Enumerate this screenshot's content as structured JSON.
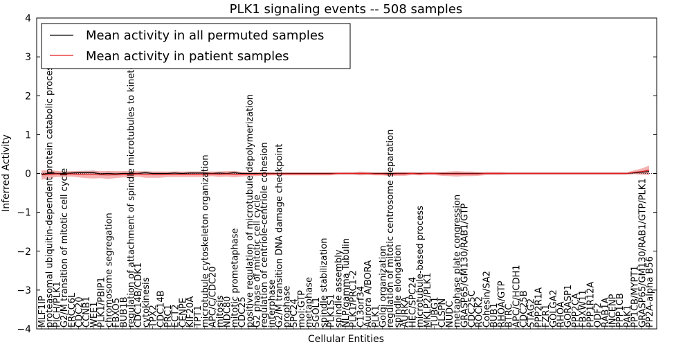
{
  "chart_data": {
    "type": "line",
    "title": "PLK1 signaling events -- 508 samples",
    "xlabel": "Cellular Entities",
    "ylabel": "Inferred Activity",
    "ylim": [
      -4,
      4
    ],
    "yticks": [
      "4",
      "3",
      "2",
      "1",
      "0",
      "−1",
      "−2",
      "−3",
      "−4"
    ],
    "legend": {
      "location": "top-left",
      "entries": [
        {
          "label": "Mean activity in all permuted samples",
          "color": "#000000"
        },
        {
          "label": "Mean activity in patient samples",
          "color": "#e41a1c"
        }
      ]
    },
    "colors": {
      "permuted": "#000000",
      "patient": "#e41a1c",
      "band": "#f08080",
      "band_gray": "#b8b8b8"
    },
    "categories": [
      "MLF1IP",
      "proteasomal ubiquitin-dependent protein catabolic process",
      "PICH/PLK1",
      "G2/M transition of mitotic cell cycle",
      "ERCC6L",
      "CDC20",
      "CCNB1",
      "WEE1",
      "PLK1/PBIP1",
      "chromosome segregation",
      "FBXO5",
      "BUB1B",
      "regulation of attachment of spindle microtubules to kinetochore",
      "CDC14B/CDK1",
      "cytokinesis",
      "TPX2",
      "CDC14B",
      "PRC1",
      "ECT2",
      "CENPE",
      "KIF20A",
      "TPT1",
      "microtubule cytoskeleton organization",
      "APC/C/CDC20",
      "mitosis",
      "NDC80",
      "mitotic prometaphase",
      "CDC25",
      "positive regulation of microtubule depolymerization",
      "G2 phase of mitotic cell cycle",
      "regulation of centriole-centriole cohesion",
      "interphase",
      "G2/M transition DNA damage checkpoint",
      "prophase",
      "SPC24",
      "mol:GTP",
      "metaphase",
      "SGOL1",
      "spindle stabilization",
      "PLK1S1",
      "spindle assembly",
      "NLP/gamma Tubulin",
      "PLK1/PRC1-2",
      "C13orf34",
      "Aurora A/BORA",
      "PLK1",
      "Golgi organization",
      "regulation of mitotic centrosome separation",
      "spindle elongation",
      "AURKA",
      "HEC/SPC24",
      "microtubule-based process",
      "MKLP2/PLK1",
      "TUBG1",
      "CLSPN",
      "NUDC",
      "metaphase plate congression",
      "GRASP65/GM130/RAB1/GTP",
      "CDC25C",
      "ROCK2",
      "Cohesin/SA2",
      "BUB1",
      "RHOA/GTP",
      "BTRC",
      "APC/C/HCDH1",
      "CDC25B",
      "STAG2",
      "PPP2R1A",
      "FZR1",
      "GOLGA2",
      "RHOA",
      "GORASP1",
      "PPP2CA",
      "FBXW11",
      "PPP1R12A",
      "ODF2",
      "RAB1A",
      "INCENP",
      "PPP1CB",
      "PAK1",
      "PP1CB/MYPT1",
      "GRASP65/GM130/RAB1/GTP/PLK1",
      "PP2A-alpha B56"
    ],
    "series": [
      {
        "name": "Mean activity in all permuted samples",
        "values": [
          -0.02,
          0.0,
          0.0,
          0.0,
          0.01,
          0.02,
          0.02,
          0.02,
          -0.01,
          0.0,
          -0.01,
          0.0,
          0.0,
          0.0,
          0.02,
          0.0,
          0.0,
          0.0,
          0.01,
          0.0,
          0.01,
          0.01,
          0.01,
          0.0,
          0.01,
          0.0,
          0.02,
          0.0,
          0.0,
          0.0,
          0.0,
          0.0,
          0.0,
          0.0,
          0.0,
          0.0,
          0.0,
          0.0,
          0.0,
          0.0,
          0.0,
          0.0,
          0.0,
          0.0,
          0.0,
          0.0,
          0.0,
          0.0,
          0.0,
          0.0,
          0.0,
          0.0,
          0.0,
          0.0,
          0.0,
          0.0,
          0.0,
          0.0,
          0.0,
          0.0,
          0.0,
          0.0,
          0.0,
          0.0,
          0.0,
          0.0,
          0.0,
          0.0,
          0.0,
          0.0,
          0.0,
          0.0,
          0.0,
          0.0,
          0.0,
          0.0,
          0.0,
          0.0,
          0.0,
          0.0,
          0.02,
          0.03,
          0.05
        ]
      },
      {
        "name": "Mean activity in patient samples",
        "values": [
          -0.04,
          -0.02,
          -0.01,
          -0.02,
          -0.01,
          -0.02,
          -0.03,
          -0.03,
          -0.03,
          -0.04,
          -0.03,
          -0.02,
          -0.02,
          -0.01,
          -0.03,
          -0.03,
          -0.03,
          -0.02,
          -0.02,
          -0.02,
          -0.02,
          -0.02,
          -0.02,
          -0.01,
          -0.02,
          -0.01,
          -0.02,
          -0.02,
          -0.02,
          -0.02,
          -0.01,
          -0.01,
          -0.01,
          -0.01,
          -0.01,
          -0.01,
          -0.01,
          -0.01,
          -0.01,
          -0.01,
          0.0,
          0.0,
          0.0,
          0.0,
          0.0,
          -0.01,
          -0.01,
          -0.02,
          -0.01,
          -0.01,
          0.0,
          -0.01,
          0.0,
          0.0,
          -0.01,
          -0.01,
          -0.01,
          -0.01,
          -0.01,
          -0.01,
          0.0,
          0.0,
          0.0,
          0.0,
          0.0,
          0.0,
          0.0,
          0.0,
          0.0,
          0.0,
          0.0,
          0.0,
          0.0,
          0.0,
          0.0,
          0.0,
          0.0,
          0.0,
          0.0,
          0.0,
          0.03,
          0.05,
          0.08
        ]
      },
      {
        "name": "patient band spread",
        "values": [
          0.12,
          0.1,
          0.08,
          0.07,
          0.07,
          0.08,
          0.09,
          0.1,
          0.09,
          0.1,
          0.09,
          0.08,
          0.08,
          0.07,
          0.08,
          0.08,
          0.08,
          0.07,
          0.07,
          0.07,
          0.07,
          0.07,
          0.07,
          0.06,
          0.07,
          0.07,
          0.08,
          0.06,
          0.05,
          0.05,
          0.05,
          0.04,
          0.04,
          0.04,
          0.04,
          0.04,
          0.04,
          0.04,
          0.04,
          0.04,
          0.03,
          0.03,
          0.03,
          0.05,
          0.04,
          0.04,
          0.04,
          0.05,
          0.05,
          0.05,
          0.04,
          0.04,
          0.04,
          0.04,
          0.05,
          0.06,
          0.07,
          0.06,
          0.06,
          0.05,
          0.04,
          0.04,
          0.04,
          0.03,
          0.03,
          0.03,
          0.03,
          0.03,
          0.03,
          0.03,
          0.03,
          0.03,
          0.03,
          0.03,
          0.03,
          0.03,
          0.03,
          0.03,
          0.03,
          0.03,
          0.05,
          0.08,
          0.12
        ]
      }
    ]
  }
}
